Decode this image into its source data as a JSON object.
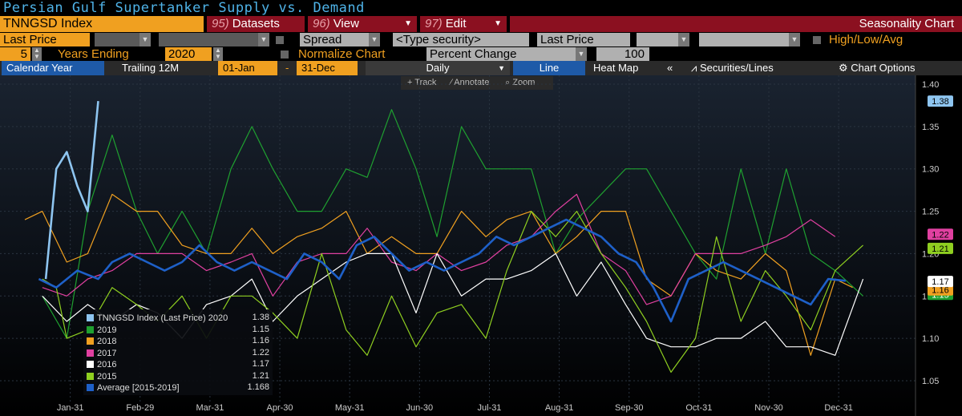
{
  "title": "Persian Gulf Supertanker Supply vs. Demand",
  "toolbar": {
    "security": "TNNGSD Index",
    "datasets_num": "95)",
    "datasets": "Datasets",
    "view_num": "96)",
    "view": "View",
    "edit_num": "97)",
    "edit": "Edit",
    "chart_name": "Seasonality Chart"
  },
  "row2": {
    "field1": "Last Price",
    "spread": "Spread",
    "type_security": "<Type security>",
    "field2": "Last Price",
    "high_low_avg": "High/Low/Avg"
  },
  "row3": {
    "years": "5",
    "years_label": "Years Ending",
    "end_year": "2020",
    "normalize": "Normalize Chart",
    "mode": "Percent Change",
    "base": "100"
  },
  "tabs": {
    "calendar": "Calendar Year",
    "trailing": "Trailing 12M",
    "from": "01-Jan",
    "dash": "-",
    "to": "31-Dec",
    "freq": "Daily",
    "line": "Line",
    "heat": "Heat Map",
    "collapse": "«",
    "securities": "Securities/Lines",
    "options": "Chart Options"
  },
  "tools": {
    "track": "Track",
    "annotate": "Annotate",
    "zoom": "Zoom"
  },
  "colors": {
    "s2020": "#8ec5f0",
    "s2019": "#1fa030",
    "s2018": "#f0a020",
    "s2017": "#e040a0",
    "s2016": "#ffffff",
    "s2015": "#8fcf20",
    "avg": "#1e60c8"
  },
  "chart_data": {
    "type": "line",
    "ylim": [
      1.02,
      1.41
    ],
    "yticks": [
      "1.05",
      "1.10",
      "1.15",
      "1.20",
      "1.25",
      "1.30",
      "1.35",
      "1.40"
    ],
    "xticks": [
      "Jan-31",
      "Feb-29",
      "Mar-31",
      "Apr-30",
      "May-31",
      "Jun-30",
      "Jul-31",
      "Aug-31",
      "Sep-30",
      "Oct-31",
      "Nov-30",
      "Dec-31"
    ],
    "series": [
      {
        "name": "TNNGSD Index (Last Price) 2020",
        "last": "1.38",
        "color": "#8ec5f0",
        "width": 2.6,
        "points": [
          [
            1.1,
            1.17
          ],
          [
            1.4,
            1.3
          ],
          [
            1.7,
            1.32
          ],
          [
            2.0,
            1.28
          ],
          [
            2.3,
            1.25
          ],
          [
            2.6,
            1.38
          ]
        ]
      },
      {
        "name": "2019",
        "last": "1.15",
        "color": "#1fa030",
        "width": 1.2,
        "points": [
          [
            1.0,
            1.15
          ],
          [
            1.7,
            1.1
          ],
          [
            2.3,
            1.25
          ],
          [
            3.0,
            1.34
          ],
          [
            3.7,
            1.25
          ],
          [
            4.3,
            1.2
          ],
          [
            5.0,
            1.25
          ],
          [
            5.7,
            1.2
          ],
          [
            6.4,
            1.3
          ],
          [
            7.0,
            1.35
          ],
          [
            7.6,
            1.3
          ],
          [
            8.3,
            1.25
          ],
          [
            9.0,
            1.25
          ],
          [
            9.7,
            1.3
          ],
          [
            10.3,
            1.29
          ],
          [
            11.0,
            1.37
          ],
          [
            11.7,
            1.3
          ],
          [
            12.3,
            1.22
          ],
          [
            13.0,
            1.35
          ],
          [
            13.7,
            1.3
          ],
          [
            14.3,
            1.3
          ],
          [
            15.0,
            1.3
          ],
          [
            15.7,
            1.2
          ],
          [
            16.3,
            1.24
          ],
          [
            17.0,
            1.27
          ],
          [
            17.7,
            1.3
          ],
          [
            18.3,
            1.3
          ],
          [
            19.0,
            1.25
          ],
          [
            19.7,
            1.2
          ],
          [
            20.3,
            1.17
          ],
          [
            21.0,
            1.3
          ],
          [
            21.7,
            1.2
          ],
          [
            22.3,
            1.3
          ],
          [
            23.0,
            1.2
          ],
          [
            23.7,
            1.18
          ],
          [
            24.5,
            1.15
          ]
        ]
      },
      {
        "name": "2018",
        "last": "1.16",
        "color": "#f0a020",
        "width": 1.2,
        "points": [
          [
            0.5,
            1.24
          ],
          [
            1.0,
            1.25
          ],
          [
            1.7,
            1.19
          ],
          [
            2.3,
            1.2
          ],
          [
            3.0,
            1.27
          ],
          [
            3.7,
            1.25
          ],
          [
            4.3,
            1.25
          ],
          [
            5.0,
            1.21
          ],
          [
            5.7,
            1.2
          ],
          [
            6.4,
            1.2
          ],
          [
            7.0,
            1.23
          ],
          [
            7.6,
            1.2
          ],
          [
            8.3,
            1.22
          ],
          [
            9.0,
            1.23
          ],
          [
            9.7,
            1.25
          ],
          [
            10.3,
            1.2
          ],
          [
            11.0,
            1.22
          ],
          [
            11.7,
            1.2
          ],
          [
            12.3,
            1.2
          ],
          [
            13.0,
            1.25
          ],
          [
            13.7,
            1.22
          ],
          [
            14.3,
            1.24
          ],
          [
            15.0,
            1.25
          ],
          [
            15.7,
            1.2
          ],
          [
            16.3,
            1.22
          ],
          [
            17.0,
            1.25
          ],
          [
            17.7,
            1.25
          ],
          [
            18.3,
            1.17
          ],
          [
            19.0,
            1.15
          ],
          [
            19.7,
            1.2
          ],
          [
            20.3,
            1.18
          ],
          [
            21.0,
            1.17
          ],
          [
            21.7,
            1.2
          ],
          [
            22.3,
            1.18
          ],
          [
            23.0,
            1.08
          ],
          [
            23.7,
            1.17
          ],
          [
            24.2,
            1.16
          ]
        ]
      },
      {
        "name": "2017",
        "last": "1.22",
        "color": "#e040a0",
        "width": 1.2,
        "points": [
          [
            1.0,
            1.16
          ],
          [
            1.7,
            1.15
          ],
          [
            2.3,
            1.17
          ],
          [
            3.0,
            1.18
          ],
          [
            3.7,
            1.2
          ],
          [
            4.3,
            1.2
          ],
          [
            5.0,
            1.2
          ],
          [
            5.7,
            1.18
          ],
          [
            6.4,
            1.19
          ],
          [
            7.0,
            1.2
          ],
          [
            7.6,
            1.15
          ],
          [
            8.3,
            1.19
          ],
          [
            9.0,
            1.2
          ],
          [
            9.7,
            1.2
          ],
          [
            10.3,
            1.23
          ],
          [
            11.0,
            1.19
          ],
          [
            11.7,
            1.18
          ],
          [
            12.3,
            1.2
          ],
          [
            13.0,
            1.18
          ],
          [
            13.7,
            1.19
          ],
          [
            14.3,
            1.21
          ],
          [
            15.0,
            1.22
          ],
          [
            15.7,
            1.25
          ],
          [
            16.3,
            1.27
          ],
          [
            17.0,
            1.2
          ],
          [
            17.7,
            1.18
          ],
          [
            18.3,
            1.14
          ],
          [
            19.0,
            1.15
          ],
          [
            19.7,
            1.2
          ],
          [
            20.3,
            1.2
          ],
          [
            21.0,
            1.2
          ],
          [
            21.7,
            1.21
          ],
          [
            22.3,
            1.22
          ],
          [
            23.0,
            1.24
          ],
          [
            23.7,
            1.22
          ]
        ]
      },
      {
        "name": "2016",
        "last": "1.17",
        "color": "#ffffff",
        "width": 1.2,
        "points": [
          [
            1.0,
            1.15
          ],
          [
            1.7,
            1.12
          ],
          [
            2.3,
            1.14
          ],
          [
            3.0,
            1.12
          ],
          [
            3.7,
            1.14
          ],
          [
            4.3,
            1.13
          ],
          [
            5.0,
            1.1
          ],
          [
            5.7,
            1.14
          ],
          [
            6.4,
            1.15
          ],
          [
            7.0,
            1.17
          ],
          [
            7.6,
            1.12
          ],
          [
            8.3,
            1.15
          ],
          [
            9.0,
            1.17
          ],
          [
            9.7,
            1.19
          ],
          [
            10.3,
            1.2
          ],
          [
            11.0,
            1.2
          ],
          [
            11.7,
            1.13
          ],
          [
            12.3,
            1.2
          ],
          [
            13.0,
            1.15
          ],
          [
            13.7,
            1.17
          ],
          [
            14.3,
            1.17
          ],
          [
            15.0,
            1.18
          ],
          [
            15.7,
            1.2
          ],
          [
            16.3,
            1.15
          ],
          [
            17.0,
            1.19
          ],
          [
            17.7,
            1.14
          ],
          [
            18.3,
            1.1
          ],
          [
            19.0,
            1.09
          ],
          [
            19.7,
            1.09
          ],
          [
            20.3,
            1.1
          ],
          [
            21.0,
            1.1
          ],
          [
            21.7,
            1.12
          ],
          [
            22.3,
            1.09
          ],
          [
            23.0,
            1.09
          ],
          [
            23.7,
            1.08
          ],
          [
            24.5,
            1.17
          ]
        ]
      },
      {
        "name": "2015",
        "last": "1.21",
        "color": "#8fcf20",
        "width": 1.2,
        "points": [
          [
            1.0,
            1.17
          ],
          [
            1.4,
            1.16
          ],
          [
            1.7,
            1.1
          ],
          [
            2.3,
            1.11
          ],
          [
            3.0,
            1.16
          ],
          [
            3.7,
            1.14
          ],
          [
            4.3,
            1.12
          ],
          [
            5.0,
            1.15
          ],
          [
            5.7,
            1.1
          ],
          [
            6.4,
            1.15
          ],
          [
            7.0,
            1.15
          ],
          [
            7.6,
            1.13
          ],
          [
            8.3,
            1.1
          ],
          [
            9.0,
            1.2
          ],
          [
            9.7,
            1.11
          ],
          [
            10.3,
            1.08
          ],
          [
            11.0,
            1.15
          ],
          [
            11.7,
            1.09
          ],
          [
            12.3,
            1.13
          ],
          [
            13.0,
            1.14
          ],
          [
            13.7,
            1.1
          ],
          [
            14.3,
            1.18
          ],
          [
            15.0,
            1.25
          ],
          [
            15.7,
            1.22
          ],
          [
            16.3,
            1.25
          ],
          [
            17.0,
            1.2
          ],
          [
            17.7,
            1.16
          ],
          [
            18.3,
            1.12
          ],
          [
            19.0,
            1.06
          ],
          [
            19.7,
            1.1
          ],
          [
            20.3,
            1.22
          ],
          [
            21.0,
            1.12
          ],
          [
            21.7,
            1.18
          ],
          [
            22.3,
            1.15
          ],
          [
            23.0,
            1.11
          ],
          [
            23.7,
            1.18
          ],
          [
            24.5,
            1.21
          ]
        ]
      },
      {
        "name": "Average [2015-2019]",
        "last": "1.168",
        "color": "#1e60c8",
        "width": 2.6,
        "points": [
          [
            0.9,
            1.17
          ],
          [
            1.4,
            1.16
          ],
          [
            2.0,
            1.18
          ],
          [
            2.6,
            1.17
          ],
          [
            3.0,
            1.19
          ],
          [
            3.5,
            1.2
          ],
          [
            4.0,
            1.19
          ],
          [
            4.5,
            1.18
          ],
          [
            5.0,
            1.19
          ],
          [
            5.5,
            1.21
          ],
          [
            6.0,
            1.19
          ],
          [
            6.5,
            1.18
          ],
          [
            7.0,
            1.19
          ],
          [
            7.5,
            1.18
          ],
          [
            8.0,
            1.17
          ],
          [
            8.5,
            1.2
          ],
          [
            9.0,
            1.19
          ],
          [
            9.5,
            1.17
          ],
          [
            10.0,
            1.21
          ],
          [
            10.5,
            1.22
          ],
          [
            11.0,
            1.2
          ],
          [
            11.5,
            1.18
          ],
          [
            12.0,
            1.19
          ],
          [
            12.5,
            1.18
          ],
          [
            13.0,
            1.19
          ],
          [
            13.5,
            1.2
          ],
          [
            14.0,
            1.22
          ],
          [
            14.5,
            1.21
          ],
          [
            15.0,
            1.22
          ],
          [
            15.5,
            1.23
          ],
          [
            16.0,
            1.24
          ],
          [
            16.5,
            1.23
          ],
          [
            17.0,
            1.22
          ],
          [
            17.5,
            1.2
          ],
          [
            18.0,
            1.19
          ],
          [
            18.5,
            1.16
          ],
          [
            19.0,
            1.12
          ],
          [
            19.5,
            1.17
          ],
          [
            20.0,
            1.18
          ],
          [
            20.5,
            1.19
          ],
          [
            21.0,
            1.18
          ],
          [
            21.5,
            1.17
          ],
          [
            22.0,
            1.16
          ],
          [
            22.5,
            1.15
          ],
          [
            23.0,
            1.14
          ],
          [
            23.5,
            1.17
          ],
          [
            24.0,
            1.168
          ]
        ]
      }
    ]
  }
}
